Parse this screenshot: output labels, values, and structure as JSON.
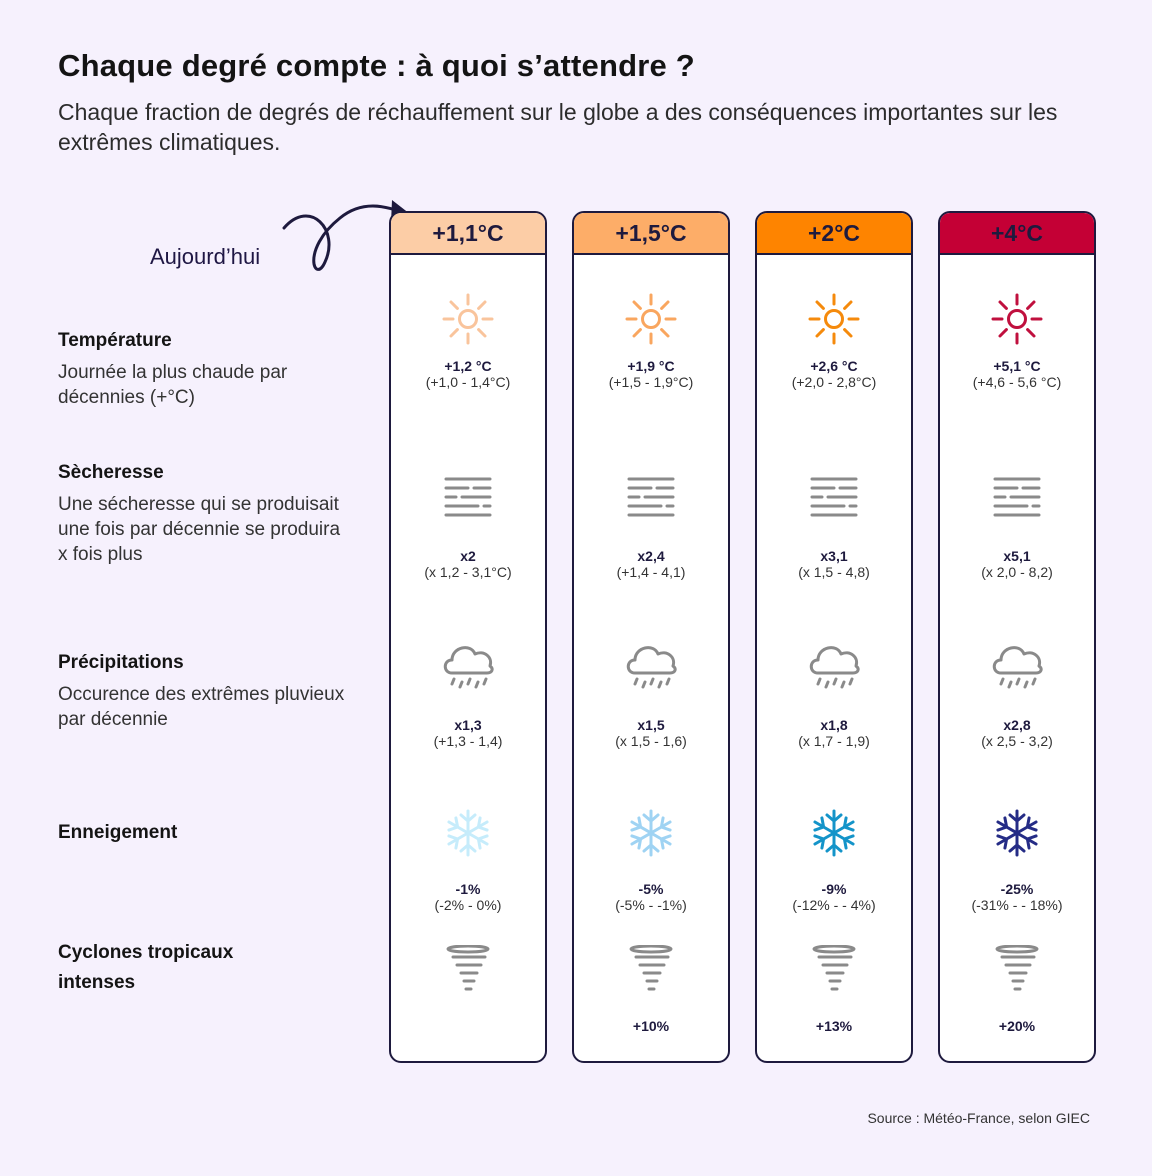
{
  "title": "Chaque degré compte : à quoi s’attendre ?",
  "subtitle": "Chaque fraction de degrés de réchauffement sur le globe a des conséquences importantes sur les extrêmes climatiques.",
  "today_label": "Aujourd’hui",
  "rows": [
    {
      "title": "Température",
      "desc": "Journée la plus chaude par décennies (+°C)"
    },
    {
      "title": "Sècheresse",
      "desc": "Une sécheresse qui se produisait une fois par décennie se produira x fois plus"
    },
    {
      "title": "Précipitations",
      "desc": "Occurence des extrêmes pluvieux par décennie"
    },
    {
      "title": "Enneigement",
      "desc": ""
    },
    {
      "title": "Cyclones tropicaux intenses",
      "desc": ""
    }
  ],
  "columns": [
    {
      "header": "+1,1°C",
      "header_color": "#fccda6",
      "sun_color": "#f9c49c",
      "snow_color": "#c6ecfb",
      "temp": {
        "value": "+1,2 °C",
        "range": "(+1,0 - 1,4°C)"
      },
      "drought": {
        "value": "x2",
        "range": "(x 1,2 - 3,1°C)"
      },
      "precip": {
        "value": "x1,3",
        "range": "(+1,3 - 1,4)"
      },
      "snow": {
        "value": "-1%",
        "range": "(-2% - 0%)"
      },
      "cyclone": {
        "value": ""
      }
    },
    {
      "header": "+1,5°C",
      "header_color": "#fdad68",
      "sun_color": "#f9a65f",
      "snow_color": "#9fd3f3",
      "temp": {
        "value": "+1,9 °C",
        "range": "(+1,5 - 1,9°C)"
      },
      "drought": {
        "value": "x2,4",
        "range": "(+1,4 - 4,1)"
      },
      "precip": {
        "value": "x1,5",
        "range": "(x 1,5 - 1,6)"
      },
      "snow": {
        "value": "-5%",
        "range": "(-5% - -1%)"
      },
      "cyclone": {
        "value": "+10%"
      }
    },
    {
      "header": "+2°C",
      "header_color": "#fe8400",
      "sun_color": "#f58a0c",
      "snow_color": "#1494c9",
      "temp": {
        "value": "+2,6 °C",
        "range": "(+2,0 - 2,8°C)"
      },
      "drought": {
        "value": "x3,1",
        "range": "(x 1,5 - 4,8)"
      },
      "precip": {
        "value": "x1,8",
        "range": "(x 1,7 - 1,9)"
      },
      "snow": {
        "value": "-9%",
        "range": "(-12% - - 4%)"
      },
      "cyclone": {
        "value": "+13%"
      }
    },
    {
      "header": "+4°C",
      "header_color": "#c40035",
      "sun_color": "#c0103e",
      "snow_color": "#252c86",
      "temp": {
        "value": "+5,1 °C",
        "range": "(+4,6 - 5,6 °C)"
      },
      "drought": {
        "value": "x5,1",
        "range": "(x 2,0 - 8,2)"
      },
      "precip": {
        "value": "x2,8",
        "range": "(x 2,5 - 3,2)"
      },
      "snow": {
        "value": "-25%",
        "range": "(-31% - - 18%)"
      },
      "cyclone": {
        "value": "+20%"
      }
    }
  ],
  "source": "Source : Météo-France, selon GIEC"
}
